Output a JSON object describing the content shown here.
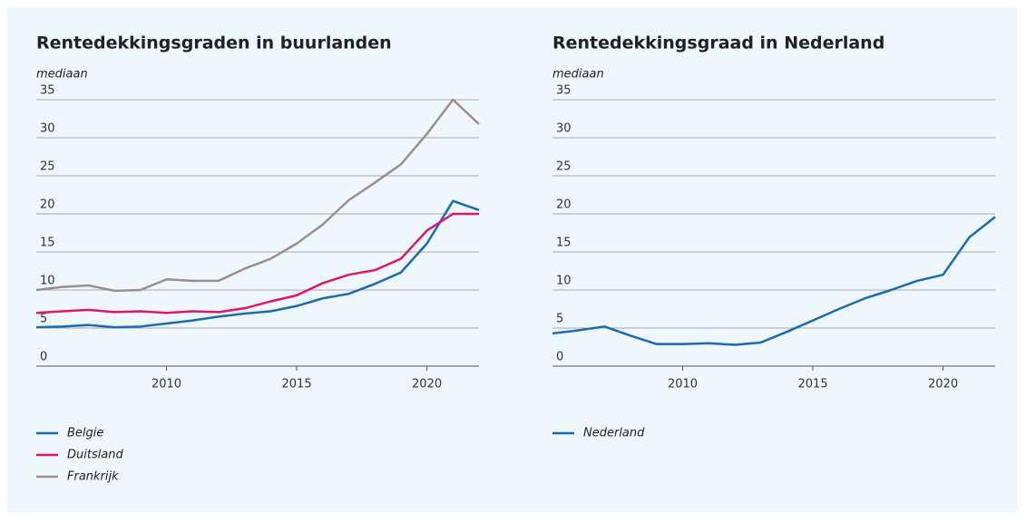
{
  "chart_data": [
    {
      "type": "line",
      "title": "Rentedekkingsgraden in buurlanden",
      "subtitle": "mediaan",
      "x": [
        2005,
        2006,
        2007,
        2008,
        2009,
        2010,
        2011,
        2012,
        2013,
        2014,
        2015,
        2016,
        2017,
        2018,
        2019,
        2020,
        2021,
        2022
      ],
      "series": [
        {
          "name": "Belgie",
          "color": "#1a6bb0",
          "values": [
            5.1,
            5.2,
            5.4,
            5.1,
            5.2,
            5.6,
            6.0,
            6.5,
            6.9,
            7.2,
            7.9,
            8.9,
            9.5,
            10.8,
            12.3,
            16.1,
            21.7,
            20.5
          ]
        },
        {
          "name": "Duitsland",
          "color": "#e0156e",
          "values": [
            7.0,
            7.2,
            7.4,
            7.1,
            7.2,
            7.0,
            7.2,
            7.1,
            7.6,
            8.5,
            9.3,
            10.9,
            12.0,
            12.6,
            14.1,
            17.8,
            20.0,
            20.0
          ]
        },
        {
          "name": "Frankrijk",
          "color": "#9d8e8a",
          "values": [
            10.0,
            10.4,
            10.6,
            9.9,
            10.0,
            11.4,
            11.2,
            11.2,
            12.8,
            14.1,
            16.1,
            18.6,
            21.8,
            24.1,
            26.5,
            30.5,
            35.0,
            31.8
          ]
        }
      ],
      "xlim": [
        2005,
        2022
      ],
      "xticks": [
        2010,
        2015,
        2020
      ],
      "ylim": [
        0,
        35
      ],
      "yticks": [
        0,
        5,
        10,
        15,
        20,
        25,
        30,
        35
      ],
      "grid": true
    },
    {
      "type": "line",
      "title": "Rentedekkingsgraad in Nederland",
      "subtitle": "mediaan",
      "x": [
        2005,
        2006,
        2007,
        2008,
        2009,
        2010,
        2011,
        2012,
        2013,
        2014,
        2015,
        2016,
        2017,
        2018,
        2019,
        2020,
        2021,
        2022
      ],
      "series": [
        {
          "name": "Nederland",
          "color": "#1a6bb0",
          "values": [
            4.3,
            4.7,
            5.2,
            4.0,
            2.9,
            2.9,
            3.0,
            2.8,
            3.1,
            4.5,
            6.0,
            7.5,
            8.9,
            10.0,
            11.2,
            12.0,
            16.9,
            19.6
          ]
        }
      ],
      "xlim": [
        2005,
        2022
      ],
      "xticks": [
        2010,
        2015,
        2020
      ],
      "ylim": [
        0,
        35
      ],
      "yticks": [
        0,
        5,
        10,
        15,
        20,
        25,
        30,
        35
      ],
      "grid": true
    }
  ]
}
